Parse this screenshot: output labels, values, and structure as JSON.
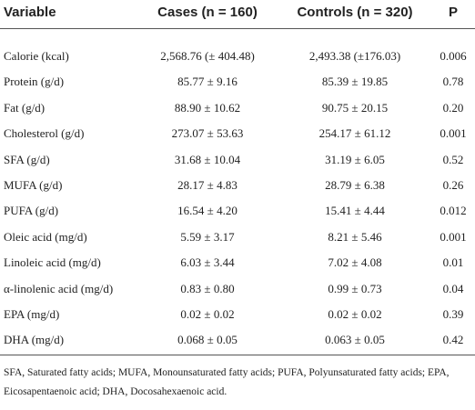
{
  "table": {
    "headers": [
      "Variable",
      "Cases (n = 160)",
      "Controls (n = 320)",
      "P"
    ],
    "rows": [
      [
        "Calorie (kcal)",
        "2,568.76 (± 404.48)",
        "2,493.38 (±176.03)",
        "0.006"
      ],
      [
        "Protein (g/d)",
        "85.77 ± 9.16",
        "85.39 ± 19.85",
        "0.78"
      ],
      [
        "Fat (g/d)",
        "88.90 ± 10.62",
        "90.75 ± 20.15",
        "0.20"
      ],
      [
        "Cholesterol (g/d)",
        "273.07 ± 53.63",
        "254.17 ± 61.12",
        "0.001"
      ],
      [
        "SFA (g/d)",
        "31.68 ± 10.04",
        "31.19 ± 6.05",
        "0.52"
      ],
      [
        "MUFA (g/d)",
        "28.17 ± 4.83",
        "28.79 ± 6.38",
        "0.26"
      ],
      [
        "PUFA (g/d)",
        "16.54 ± 4.20",
        "15.41 ± 4.44",
        "0.012"
      ],
      [
        "Oleic acid (mg/d)",
        "5.59 ± 3.17",
        "8.21 ± 5.46",
        "0.001"
      ],
      [
        "Linoleic acid (mg/d)",
        "6.03 ± 3.44",
        "7.02 ± 4.08",
        "0.01"
      ],
      [
        "α-linolenic acid (mg/d)",
        "0.83 ± 0.80",
        "0.99 ± 0.73",
        "0.04"
      ],
      [
        "EPA (mg/d)",
        "0.02 ± 0.02",
        "0.02 ± 0.02",
        "0.39"
      ],
      [
        "DHA (mg/d)",
        "0.068 ± 0.05",
        "0.063 ± 0.05",
        "0.42"
      ]
    ]
  },
  "footnote": "SFA, Saturated fatty acids; MUFA, Monounsaturated fatty acids; PUFA, Polyunsaturated fatty acids; EPA, Eicosapentaenoic acid; DHA, Docosahexaenoic acid."
}
